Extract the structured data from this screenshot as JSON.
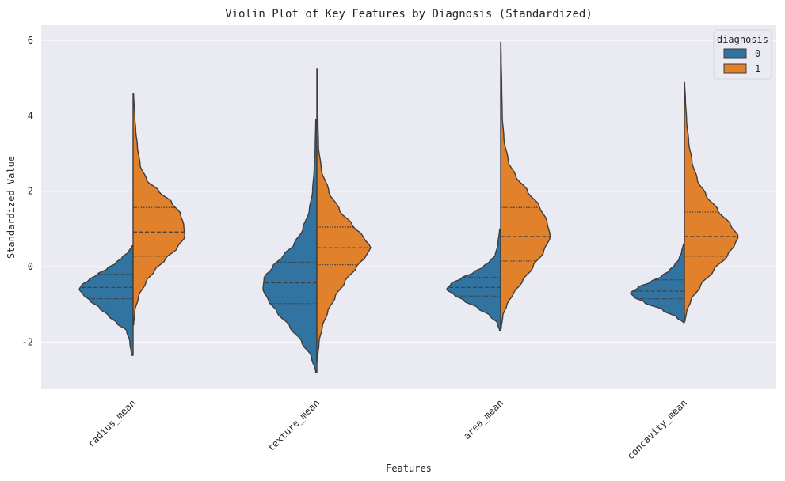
{
  "chart_data": {
    "type": "violin",
    "title": "Violin Plot of Key Features by Diagnosis (Standardized)",
    "xlabel": "Features",
    "ylabel": "Standardized Value",
    "ylim": [
      -3.25,
      6.4
    ],
    "yticks": [
      -2,
      0,
      2,
      4,
      6
    ],
    "ytick_labels": [
      "-2",
      "0",
      "2",
      "4",
      "6"
    ],
    "categories": [
      "radius_mean",
      "texture_mean",
      "area_mean",
      "concavity_mean"
    ],
    "grid": true,
    "split": true,
    "inner": "quartile",
    "legend": {
      "title": "diagnosis",
      "position": "top-right",
      "entries": [
        "0",
        "1"
      ]
    },
    "colors": {
      "0": "#3274a1",
      "1": "#e1812c",
      "background": "#eaeaf2",
      "outline": "#3d3d3d"
    },
    "series": [
      {
        "name": "0",
        "violins": [
          {
            "category": "radius_mean",
            "quartiles": [
              -0.85,
              -0.55,
              -0.2
            ],
            "profile": [
              [
                -2.35,
                0.03
              ],
              [
                -2.0,
                0.06
              ],
              [
                -1.7,
                0.12
              ],
              [
                -1.5,
                0.3
              ],
              [
                -1.3,
                0.46
              ],
              [
                -1.1,
                0.62
              ],
              [
                -0.9,
                0.8
              ],
              [
                -0.75,
                0.92
              ],
              [
                -0.6,
                1.0
              ],
              [
                -0.5,
                0.96
              ],
              [
                -0.35,
                0.82
              ],
              [
                -0.2,
                0.66
              ],
              [
                -0.05,
                0.48
              ],
              [
                0.1,
                0.32
              ],
              [
                0.25,
                0.2
              ],
              [
                0.4,
                0.08
              ],
              [
                0.55,
                0.02
              ]
            ]
          },
          {
            "category": "texture_mean",
            "quartiles": [
              -0.98,
              -0.43,
              0.12
            ],
            "profile": [
              [
                -2.8,
                0.02
              ],
              [
                -2.4,
                0.1
              ],
              [
                -2.0,
                0.28
              ],
              [
                -1.6,
                0.5
              ],
              [
                -1.2,
                0.74
              ],
              [
                -0.9,
                0.9
              ],
              [
                -0.6,
                1.0
              ],
              [
                -0.3,
                0.98
              ],
              [
                0.0,
                0.82
              ],
              [
                0.3,
                0.62
              ],
              [
                0.6,
                0.42
              ],
              [
                1.0,
                0.26
              ],
              [
                1.5,
                0.14
              ],
              [
                2.0,
                0.08
              ],
              [
                2.6,
                0.05
              ],
              [
                3.2,
                0.03
              ],
              [
                3.9,
                0.02
              ]
            ]
          },
          {
            "category": "area_mean",
            "quartiles": [
              -0.78,
              -0.55,
              -0.28
            ],
            "profile": [
              [
                -1.7,
                0.02
              ],
              [
                -1.5,
                0.06
              ],
              [
                -1.3,
                0.2
              ],
              [
                -1.1,
                0.42
              ],
              [
                -0.9,
                0.68
              ],
              [
                -0.75,
                0.86
              ],
              [
                -0.6,
                1.0
              ],
              [
                -0.45,
                0.92
              ],
              [
                -0.3,
                0.72
              ],
              [
                -0.15,
                0.5
              ],
              [
                0.0,
                0.32
              ],
              [
                0.15,
                0.2
              ],
              [
                0.3,
                0.1
              ],
              [
                0.6,
                0.05
              ],
              [
                1.0,
                0.02
              ]
            ]
          },
          {
            "category": "concavity_mean",
            "quartiles": [
              -0.85,
              -0.65,
              -0.35
            ],
            "profile": [
              [
                -1.48,
                0.02
              ],
              [
                -1.35,
                0.14
              ],
              [
                -1.15,
                0.4
              ],
              [
                -0.95,
                0.74
              ],
              [
                -0.8,
                0.94
              ],
              [
                -0.7,
                1.0
              ],
              [
                -0.55,
                0.86
              ],
              [
                -0.4,
                0.62
              ],
              [
                -0.25,
                0.42
              ],
              [
                -0.1,
                0.28
              ],
              [
                0.05,
                0.18
              ],
              [
                0.2,
                0.1
              ],
              [
                0.4,
                0.05
              ],
              [
                0.6,
                0.02
              ]
            ]
          }
        ]
      },
      {
        "name": "1",
        "violins": [
          {
            "category": "radius_mean",
            "quartiles": [
              0.28,
              0.92,
              1.57
            ],
            "profile": [
              [
                -1.55,
                0.01
              ],
              [
                -1.2,
                0.03
              ],
              [
                -0.8,
                0.1
              ],
              [
                -0.4,
                0.24
              ],
              [
                -0.1,
                0.4
              ],
              [
                0.2,
                0.6
              ],
              [
                0.5,
                0.82
              ],
              [
                0.8,
                0.96
              ],
              [
                1.1,
                0.94
              ],
              [
                1.4,
                0.88
              ],
              [
                1.7,
                0.72
              ],
              [
                2.0,
                0.48
              ],
              [
                2.3,
                0.25
              ],
              [
                2.7,
                0.13
              ],
              [
                3.2,
                0.08
              ],
              [
                3.6,
                0.05
              ],
              [
                4.0,
                0.03
              ],
              [
                4.58,
                0.01
              ]
            ]
          },
          {
            "category": "texture_mean",
            "quartiles": [
              0.05,
              0.5,
              1.05
            ],
            "profile": [
              [
                -2.5,
                0.01
              ],
              [
                -2.0,
                0.04
              ],
              [
                -1.6,
                0.1
              ],
              [
                -1.2,
                0.2
              ],
              [
                -0.8,
                0.34
              ],
              [
                -0.4,
                0.52
              ],
              [
                0.0,
                0.74
              ],
              [
                0.3,
                0.92
              ],
              [
                0.5,
                1.0
              ],
              [
                0.8,
                0.86
              ],
              [
                1.1,
                0.66
              ],
              [
                1.5,
                0.42
              ],
              [
                2.0,
                0.22
              ],
              [
                2.6,
                0.08
              ],
              [
                3.2,
                0.03
              ],
              [
                3.9,
                0.02
              ],
              [
                4.6,
                0.01
              ],
              [
                5.25,
                0.005
              ]
            ]
          },
          {
            "category": "area_mean",
            "quartiles": [
              0.15,
              0.8,
              1.57
            ],
            "profile": [
              [
                -1.65,
                0.01
              ],
              [
                -1.3,
                0.04
              ],
              [
                -1.0,
                0.12
              ],
              [
                -0.7,
                0.24
              ],
              [
                -0.4,
                0.4
              ],
              [
                0.0,
                0.6
              ],
              [
                0.4,
                0.8
              ],
              [
                0.8,
                0.92
              ],
              [
                1.2,
                0.86
              ],
              [
                1.6,
                0.72
              ],
              [
                2.0,
                0.5
              ],
              [
                2.4,
                0.28
              ],
              [
                2.8,
                0.14
              ],
              [
                3.4,
                0.06
              ],
              [
                4.0,
                0.03
              ],
              [
                4.8,
                0.02
              ],
              [
                5.5,
                0.01
              ],
              [
                5.95,
                0.005
              ]
            ]
          },
          {
            "category": "concavity_mean",
            "quartiles": [
              0.28,
              0.8,
              1.45
            ],
            "profile": [
              [
                -1.45,
                0.01
              ],
              [
                -1.2,
                0.04
              ],
              [
                -0.9,
                0.12
              ],
              [
                -0.5,
                0.3
              ],
              [
                -0.1,
                0.54
              ],
              [
                0.3,
                0.8
              ],
              [
                0.6,
                0.94
              ],
              [
                0.8,
                1.0
              ],
              [
                1.1,
                0.86
              ],
              [
                1.5,
                0.62
              ],
              [
                1.9,
                0.4
              ],
              [
                2.3,
                0.24
              ],
              [
                2.8,
                0.14
              ],
              [
                3.3,
                0.08
              ],
              [
                3.9,
                0.04
              ],
              [
                4.4,
                0.02
              ],
              [
                4.88,
                0.005
              ]
            ]
          }
        ]
      }
    ]
  }
}
